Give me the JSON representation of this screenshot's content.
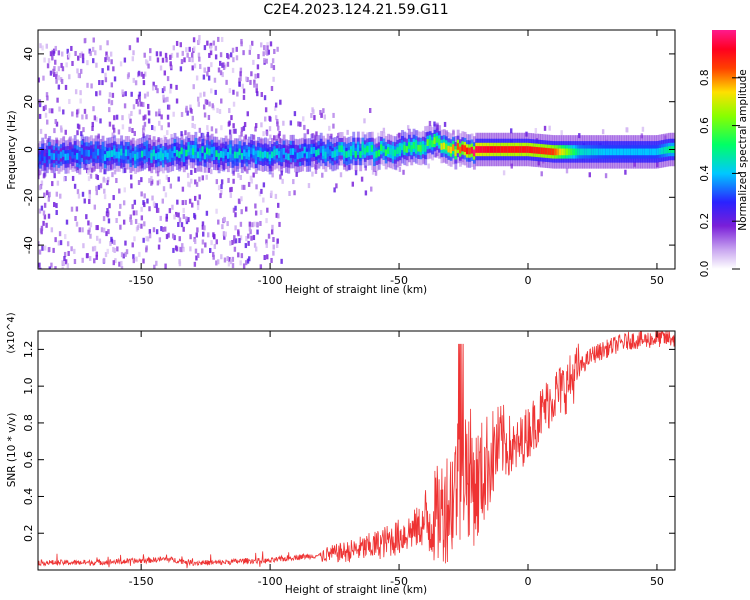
{
  "title": "C2E4.2023.124.21.59.G11",
  "chart_data": [
    {
      "type": "heatmap",
      "xlabel": "Height of straight line (km)",
      "ylabel": "Frequency (Hz)",
      "xlim": [
        -190,
        57
      ],
      "ylim": [
        -50,
        50
      ],
      "x_ticks": [
        -150,
        -100,
        -50,
        0,
        50
      ],
      "x_tick_labels": [
        "-150",
        "-100",
        "-50",
        "0",
        "50"
      ],
      "y_ticks": [
        -40,
        -20,
        0,
        20,
        40
      ],
      "y_tick_labels": [
        "-40",
        "-20",
        "0",
        "20",
        "40"
      ],
      "colorbar": {
        "label": "Normalized spectral amplitude",
        "range": [
          0,
          1
        ],
        "ticks": [
          0.0,
          0.2,
          0.4,
          0.6,
          0.8
        ],
        "tick_labels": [
          "0.0",
          "0.2",
          "0.4",
          "0.6",
          "0.8"
        ],
        "colormap": "rainbow (white-violet-blue-cyan-green-yellow-red-magenta)"
      },
      "ridge": {
        "x": [
          -190,
          -170,
          -150,
          -130,
          -110,
          -100,
          -90,
          -80,
          -70,
          -60,
          -50,
          -40,
          -35,
          -30,
          -25,
          -20,
          -10,
          0,
          10,
          20,
          30,
          40,
          50,
          55
        ],
        "frequency": [
          -3,
          -2,
          -2,
          -1,
          -2,
          -2,
          -2,
          -1,
          -1,
          -1,
          0,
          1,
          3,
          0,
          0,
          0,
          0,
          0,
          -1,
          -1,
          -1,
          -1,
          -1,
          0
        ],
        "amplitude": [
          0.3,
          0.35,
          0.4,
          0.45,
          0.4,
          0.4,
          0.35,
          0.4,
          0.45,
          0.5,
          0.5,
          0.55,
          0.6,
          0.7,
          0.85,
          0.95,
          0.9,
          0.9,
          0.85,
          0.45,
          0.4,
          0.4,
          0.4,
          0.5
        ]
      }
    },
    {
      "type": "line",
      "xlabel": "Height of straight line (km)",
      "ylabel": "SNR (10 * v/v)",
      "y_multiplier": "(x10^4)",
      "xlim": [
        -190,
        57
      ],
      "ylim": [
        0,
        1.3
      ],
      "x_ticks": [
        -150,
        -100,
        -50,
        0,
        50
      ],
      "x_tick_labels": [
        "-150",
        "-100",
        "-50",
        "0",
        "50"
      ],
      "y_ticks": [
        0.2,
        0.4,
        0.6,
        0.8,
        1.0,
        1.2
      ],
      "y_tick_labels": [
        "0.2",
        "0.4",
        "0.6",
        "0.8",
        "1.0",
        "1.2"
      ],
      "color": "#ee3333",
      "series": [
        {
          "x": [
            -190,
            -170,
            -150,
            -140,
            -130,
            -120,
            -110,
            -100,
            -90,
            -80,
            -70,
            -60,
            -50,
            -40,
            -35,
            -30,
            -25,
            -20,
            -15,
            -10,
            -5,
            0,
            5,
            10,
            15,
            20,
            25,
            30,
            35,
            40,
            45,
            50,
            55
          ],
          "values": [
            0.04,
            0.04,
            0.05,
            0.06,
            0.04,
            0.04,
            0.05,
            0.05,
            0.07,
            0.08,
            0.1,
            0.13,
            0.18,
            0.25,
            0.3,
            0.38,
            0.6,
            0.45,
            0.6,
            0.7,
            0.65,
            0.75,
            0.85,
            0.95,
            1.0,
            1.1,
            1.17,
            1.2,
            1.23,
            1.25,
            1.25,
            1.26,
            1.26
          ]
        }
      ]
    }
  ]
}
